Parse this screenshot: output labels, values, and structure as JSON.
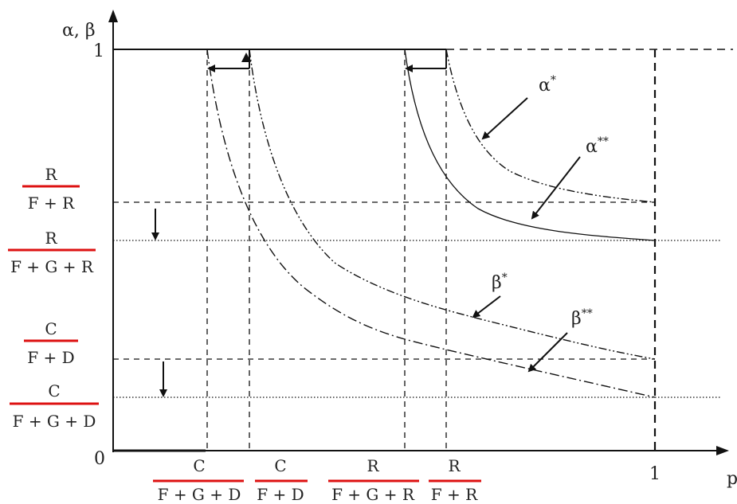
{
  "axes": {
    "y_label": "α, β",
    "y_top_tick": "1",
    "origin": "0",
    "x_tick_one": "1",
    "x_label": "p"
  },
  "y_fractions": [
    {
      "num": "R",
      "den": "F + R"
    },
    {
      "num": "R",
      "den": "F + G + R"
    },
    {
      "num": "C",
      "den": "F + D"
    },
    {
      "num": "C",
      "den": "F + G + D"
    }
  ],
  "x_fractions": [
    {
      "num": "C",
      "den": "F + G + D"
    },
    {
      "num": "C",
      "den": "F + D"
    },
    {
      "num": "R",
      "den": "F + G + R"
    },
    {
      "num": "R",
      "den": "F + R"
    }
  ],
  "curve_labels": {
    "alpha_star": "α*",
    "alpha_star_star": "α**",
    "beta_star": "β*",
    "beta_star_star": "β**"
  },
  "colors": {
    "fraction_bar": "#dd1111",
    "lines": "#111111"
  }
}
